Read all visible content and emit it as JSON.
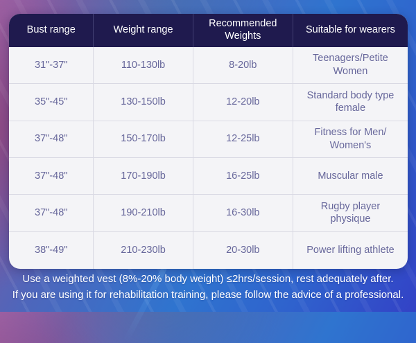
{
  "table": {
    "headers": [
      {
        "label": "Bust range"
      },
      {
        "label": "Weight range"
      },
      {
        "label": "Recommended Weights"
      },
      {
        "label": "Suitable for wearers"
      }
    ],
    "rows": [
      {
        "cells": [
          "31\"-37\"",
          "110-130lb",
          "8-20lb",
          "Teenagers/Petite Women"
        ]
      },
      {
        "cells": [
          "35\"-45\"",
          "130-150lb",
          "12-20lb",
          "Standard body type female"
        ]
      },
      {
        "cells": [
          "37\"-48\"",
          "150-170lb",
          "12-25lb",
          "Fitness for Men/ Women's"
        ]
      },
      {
        "cells": [
          "37\"-48\"",
          "170-190lb",
          "16-25lb",
          "Muscular male"
        ]
      },
      {
        "cells": [
          "37\"-48\"",
          "190-210lb",
          "16-30lb",
          "Rugby player physique"
        ]
      },
      {
        "cells": [
          "38\"-49\"",
          "210-230lb",
          "20-30lb",
          "Power lifting athlete"
        ]
      }
    ]
  },
  "footer": {
    "line1": "Use a weighted vest (8%-20% body weight) ≤2hrs/session, rest adequately after.",
    "line2": "If you are using it for rehabilitation training, please follow the advice of a professional."
  },
  "colors": {
    "header_bg": "#1f1a4e",
    "table_bg": "#f4f4f7",
    "body_text": "#67679b",
    "grid_line": "#d9d9e3",
    "bg_purple": "#9b63a7",
    "bg_blue": "#2f74cf",
    "bg_indigo": "#3342c6",
    "footer_text": "#ffffff"
  }
}
